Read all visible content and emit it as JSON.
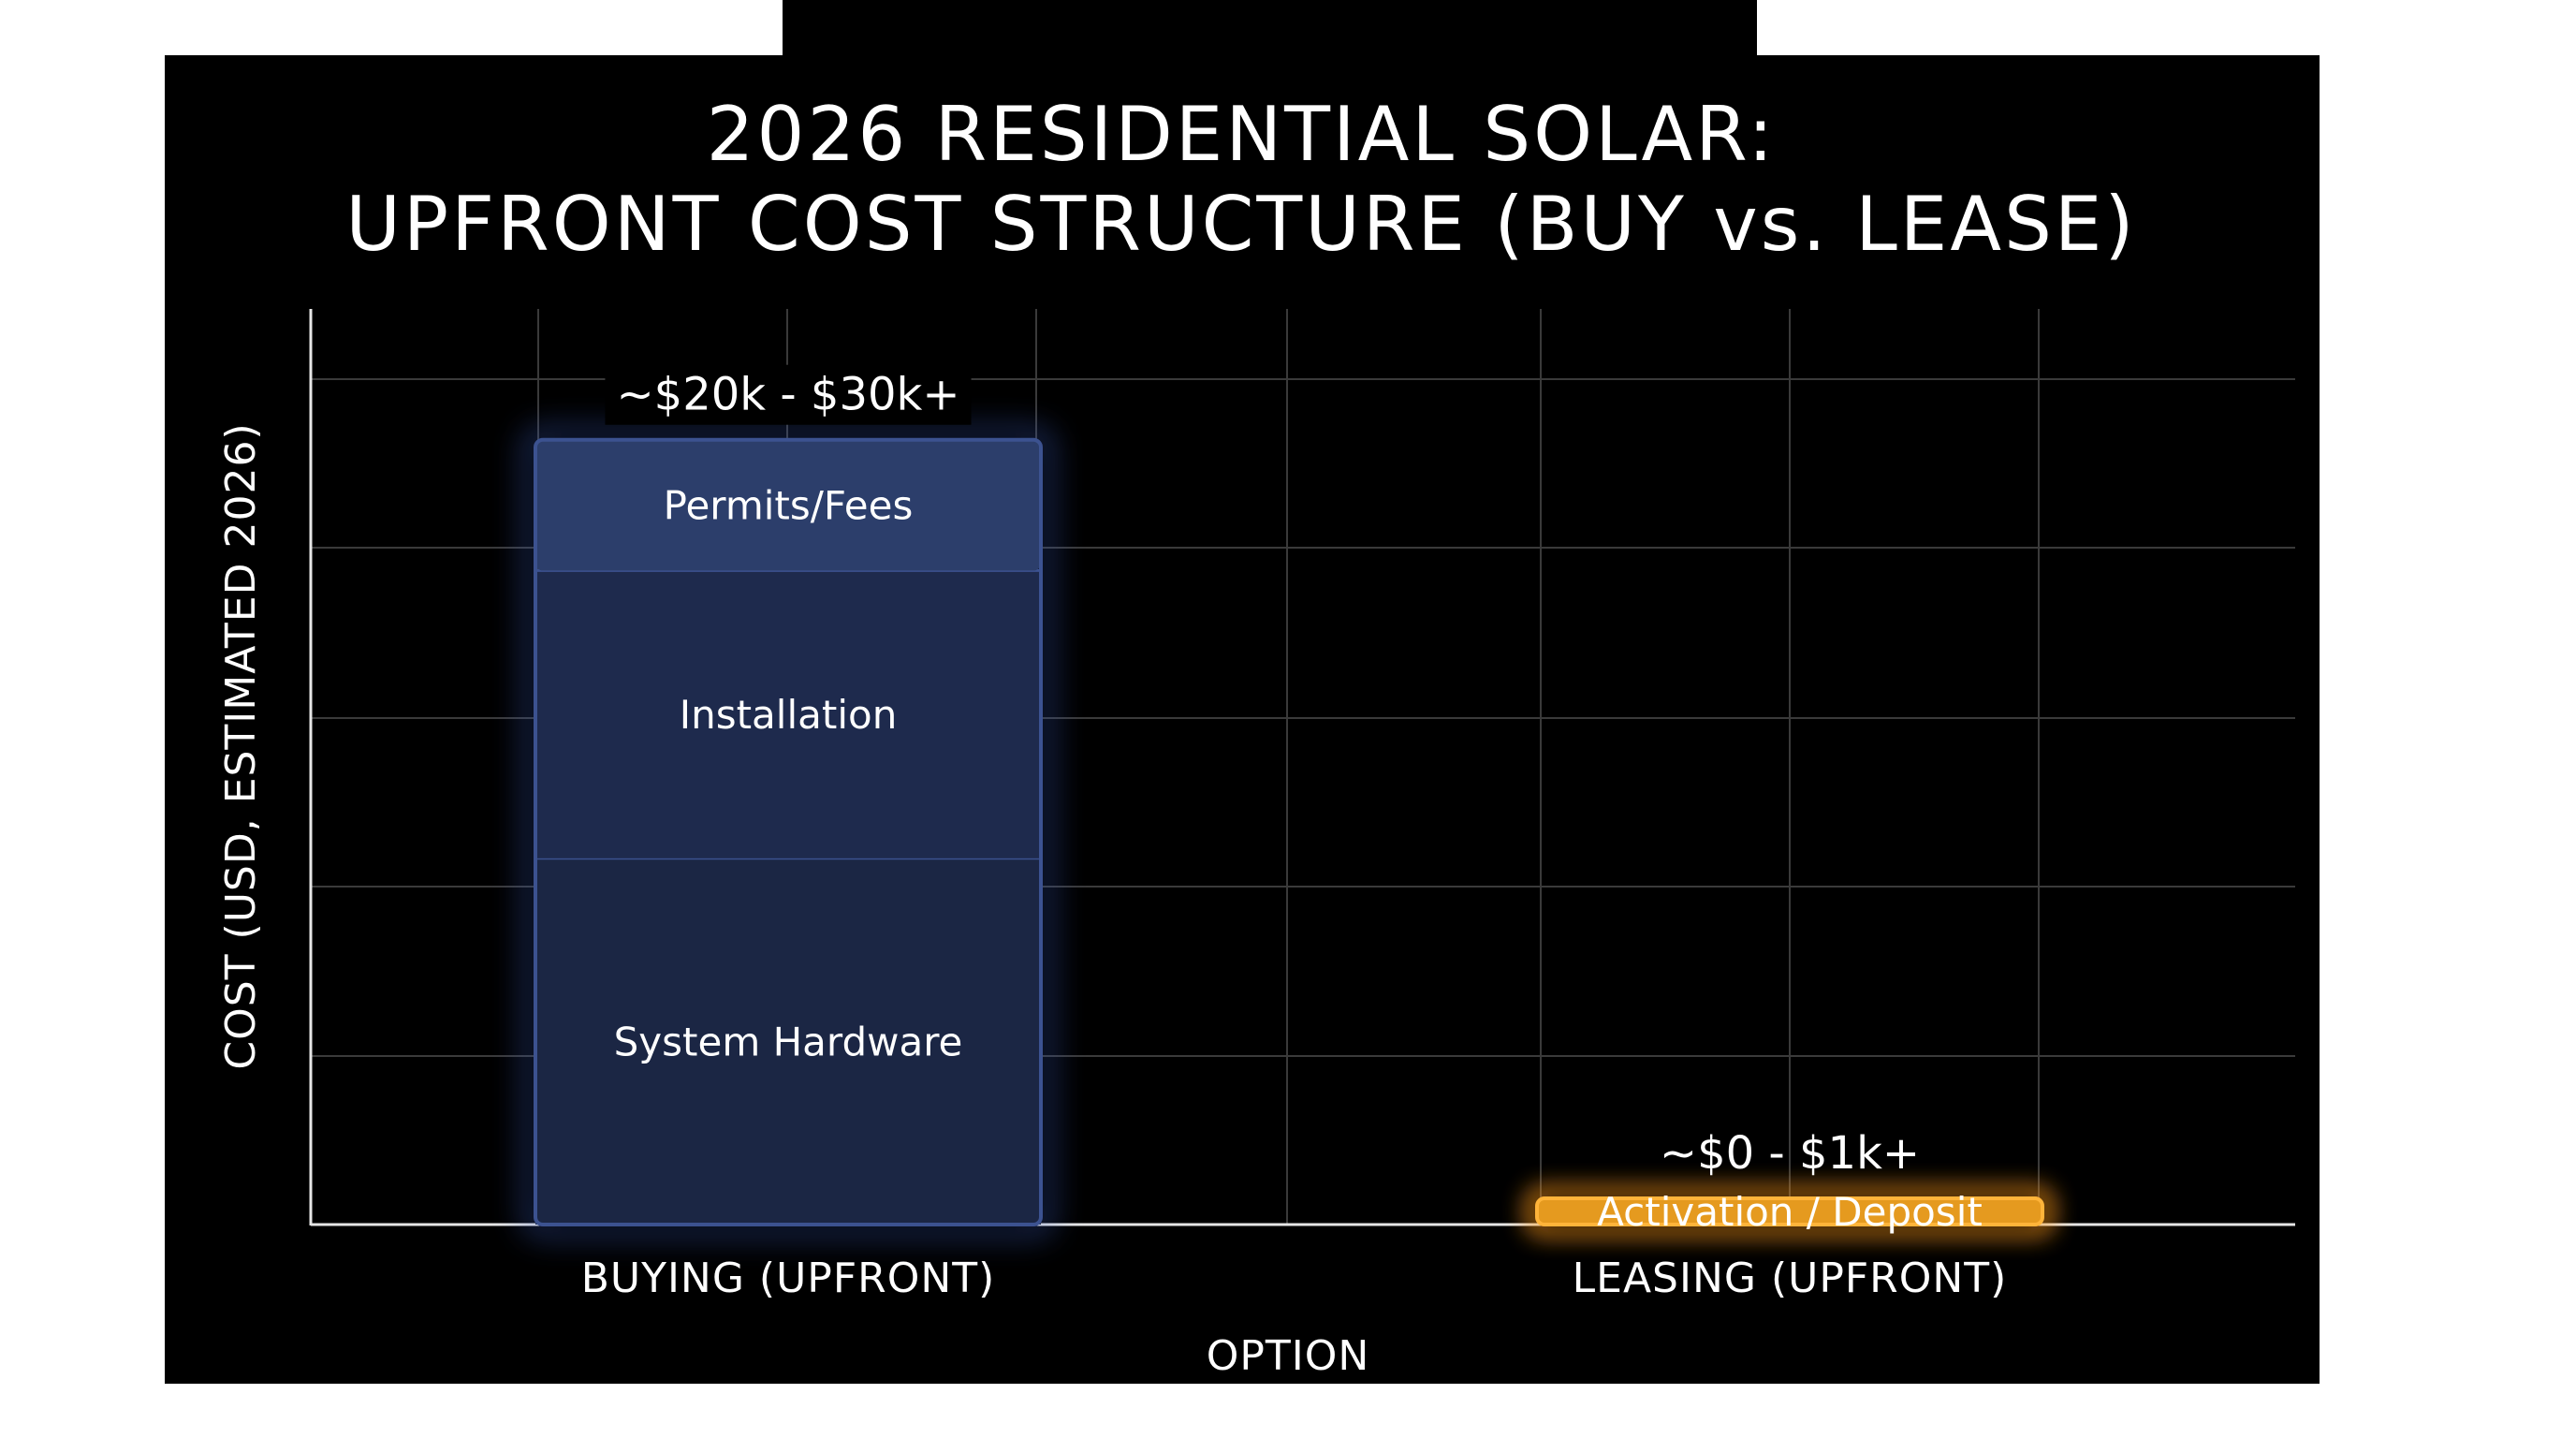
{
  "chart_data": {
    "type": "bar",
    "stacked": true,
    "title": [
      "2026 RESIDENTIAL SOLAR:",
      "UPFRONT COST STRUCTURE (BUY vs. LEASE)"
    ],
    "xlabel": "OPTION",
    "ylabel": "COST (USD, ESTIMATED 2026)",
    "categories": [
      "BUYING (UPFRONT)",
      "LEASING (UPFRONT)"
    ],
    "series": [
      {
        "name": "System Hardware",
        "values": [
          14,
          0
        ]
      },
      {
        "name": "Installation",
        "values": [
          11,
          0
        ]
      },
      {
        "name": "Permits/Fees",
        "values": [
          5,
          0
        ]
      },
      {
        "name": "Activation / Deposit",
        "values": [
          0,
          1
        ]
      }
    ],
    "totals_labels": [
      "~$20k - $30k+",
      "~$0 - $1k+"
    ],
    "ylim": [
      0,
      35
    ],
    "y_tick_labels_shown": false,
    "grid": true,
    "legend": "none (segments labeled inline)",
    "colors": {
      "background": "#000000",
      "grid": "#3a3a3a",
      "axis": "#e6e6e6",
      "text": "#ffffff",
      "system_hardware": "#1b2644",
      "installation": "#1e2a4d",
      "permits_fees": "#2c3e6b",
      "bar_border": "#3c5290",
      "glow_blue": "#3f63c8",
      "activation_fill": "#e59a1f",
      "activation_border": "#ffb43a",
      "glow_orange": "#ff9a1a"
    }
  }
}
